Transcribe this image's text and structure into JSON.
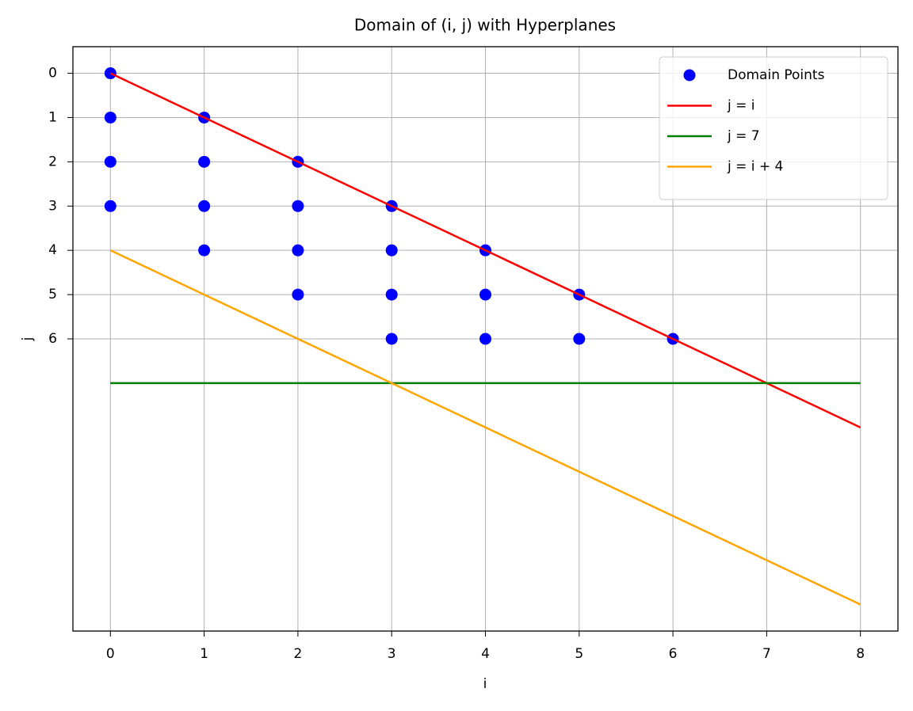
{
  "chart_data": {
    "type": "scatter",
    "title": "Domain of (i, j) with Hyperplanes",
    "xlabel": "i",
    "ylabel": "j",
    "xlim": [
      -0.4,
      8.4
    ],
    "xticks": [
      0,
      1,
      2,
      3,
      4,
      5,
      6,
      7,
      8
    ],
    "ylim": [
      12.6,
      -0.6
    ],
    "yticks": [
      0,
      1,
      2,
      3,
      4,
      5,
      6
    ],
    "grid": true,
    "legend": "upper right",
    "series": [
      {
        "name": "Domain Points",
        "type": "scatter",
        "color": "#0000ff",
        "x": [
          0,
          0,
          0,
          0,
          1,
          1,
          1,
          1,
          2,
          2,
          2,
          2,
          3,
          3,
          3,
          3,
          4,
          4,
          4,
          5,
          5,
          6
        ],
        "values": [
          0,
          1,
          2,
          3,
          1,
          2,
          3,
          4,
          2,
          3,
          4,
          5,
          3,
          4,
          5,
          6,
          4,
          5,
          6,
          5,
          6,
          6
        ]
      },
      {
        "name": "j = i",
        "type": "line",
        "color": "#ff0000",
        "x": [
          0,
          8
        ],
        "values": [
          0,
          8
        ]
      },
      {
        "name": "j = 7",
        "type": "line",
        "color": "#008000",
        "x": [
          0,
          8
        ],
        "values": [
          7,
          7
        ]
      },
      {
        "name": "j = i + 4",
        "type": "line",
        "color": "#ffa500",
        "x": [
          0,
          8
        ],
        "values": [
          4,
          12
        ]
      }
    ]
  }
}
